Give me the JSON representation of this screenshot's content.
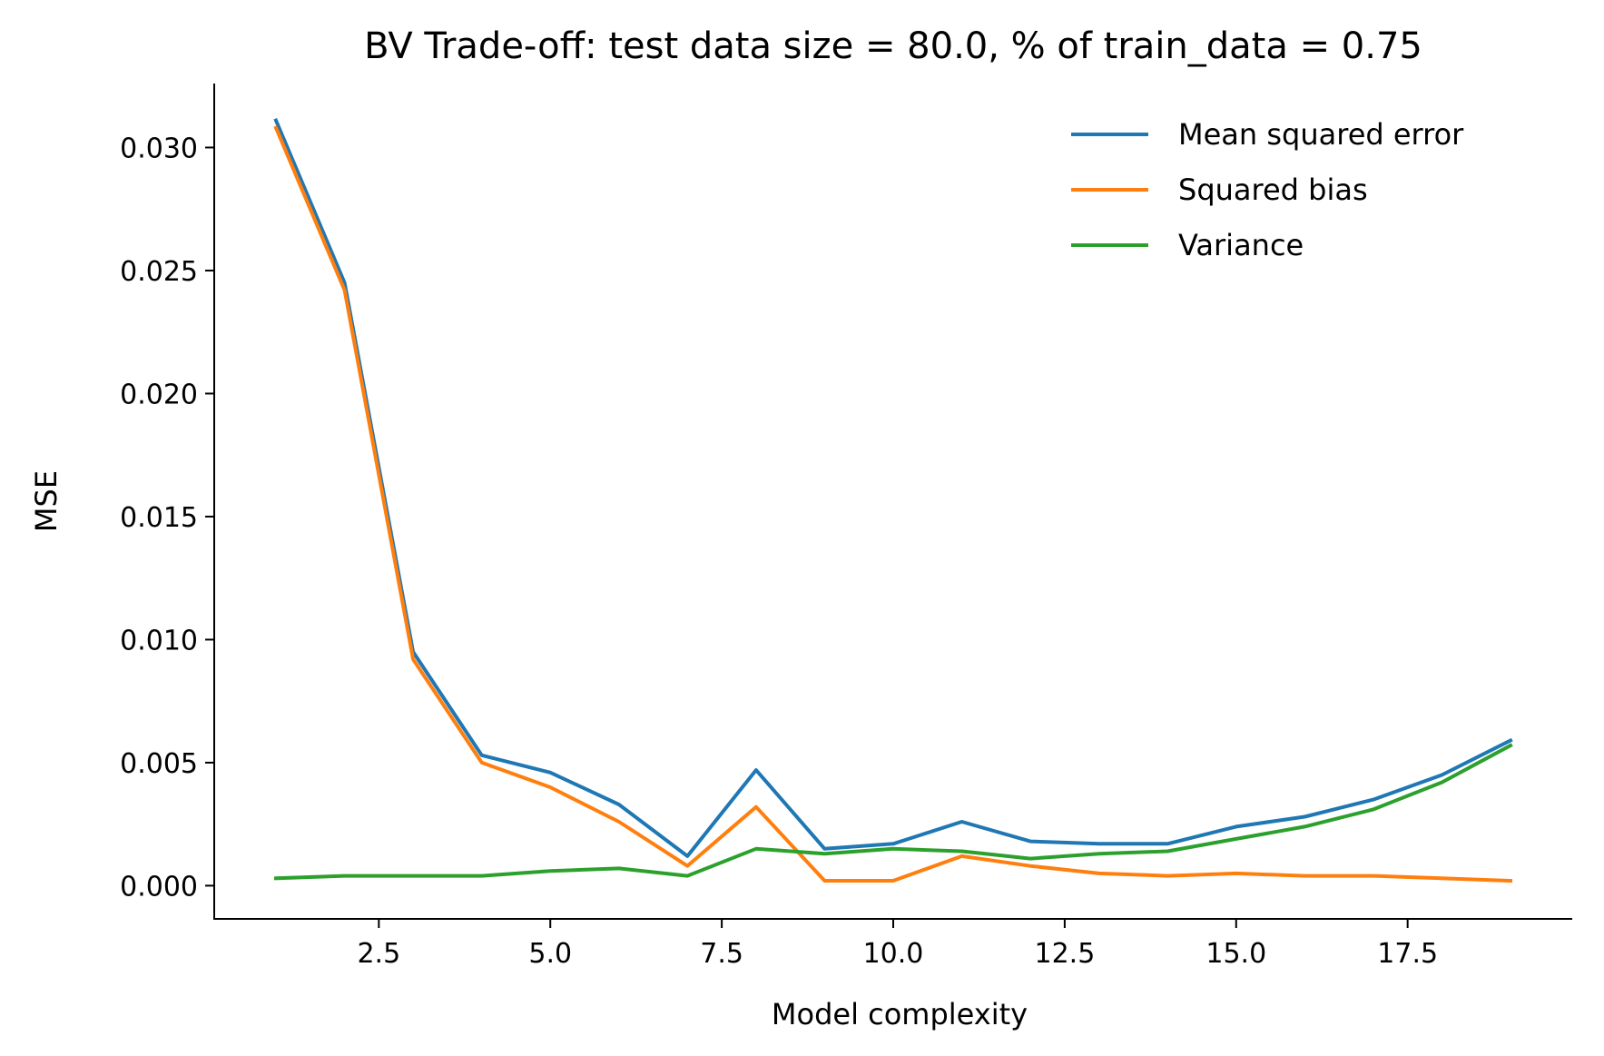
{
  "chart_data": {
    "type": "line",
    "title": "BV Trade-off: test data size = 80.0, % of train_data = 0.75",
    "xlabel": "Model complexity",
    "ylabel": "MSE",
    "xlim": [
      0.1,
      19.9
    ],
    "ylim": [
      -0.00135,
      0.0326
    ],
    "xticks": [
      2.5,
      5.0,
      7.5,
      10.0,
      12.5,
      15.0,
      17.5
    ],
    "xtick_labels": [
      "2.5",
      "5.0",
      "7.5",
      "10.0",
      "12.5",
      "15.0",
      "17.5"
    ],
    "yticks": [
      0.0,
      0.005,
      0.01,
      0.015,
      0.02,
      0.025,
      0.03
    ],
    "ytick_labels": [
      "0.000",
      "0.005",
      "0.010",
      "0.015",
      "0.020",
      "0.025",
      "0.030"
    ],
    "grid": false,
    "legend_position": "top-right",
    "x": [
      1,
      2,
      3,
      4,
      5,
      6,
      7,
      8,
      9,
      10,
      11,
      12,
      13,
      14,
      15,
      16,
      17,
      18,
      19
    ],
    "series": [
      {
        "name": "Mean squared error",
        "color": "#1f77b4",
        "values": [
          0.0311,
          0.0245,
          0.0095,
          0.0053,
          0.0046,
          0.0033,
          0.0012,
          0.0047,
          0.0015,
          0.0017,
          0.0026,
          0.0018,
          0.0017,
          0.0017,
          0.0024,
          0.0028,
          0.0035,
          0.0045,
          0.0059
        ]
      },
      {
        "name": "Squared bias",
        "color": "#ff7f0e",
        "values": [
          0.0308,
          0.0242,
          0.0092,
          0.005,
          0.004,
          0.0026,
          0.0008,
          0.0032,
          0.0002,
          0.0002,
          0.0012,
          0.0008,
          0.0005,
          0.0004,
          0.0005,
          0.0004,
          0.0004,
          0.0003,
          0.0002
        ]
      },
      {
        "name": "Variance",
        "color": "#2ca02c",
        "values": [
          0.0003,
          0.0004,
          0.0004,
          0.0004,
          0.0006,
          0.0007,
          0.0004,
          0.0015,
          0.0013,
          0.0015,
          0.0014,
          0.0011,
          0.0013,
          0.0014,
          0.0019,
          0.0024,
          0.0031,
          0.0042,
          0.0057
        ]
      }
    ]
  }
}
